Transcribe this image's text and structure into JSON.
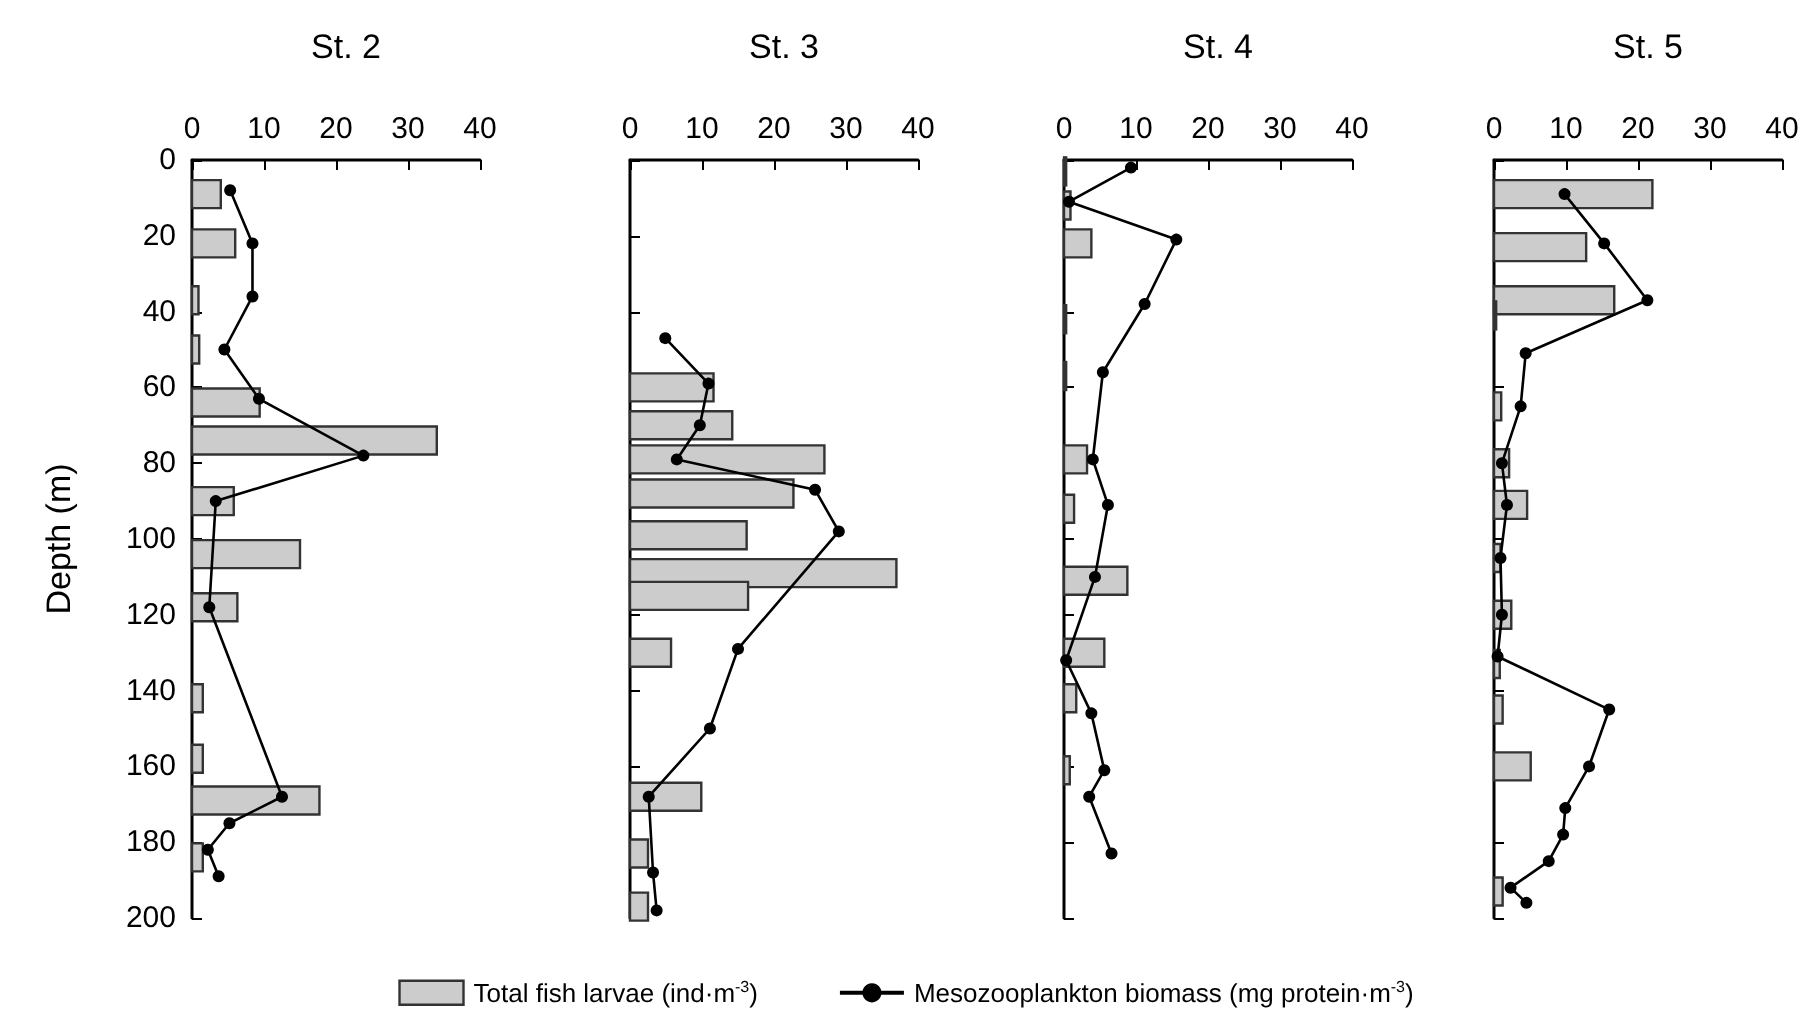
{
  "chart_data": [
    {
      "type": "bar",
      "orientation": "horizontal",
      "title": "St. 2",
      "ylabel": "Depth (m)",
      "xlim": [
        0,
        40
      ],
      "xticks": [
        0,
        10,
        20,
        30,
        40
      ],
      "ylim": [
        200,
        0
      ],
      "yticks": [
        0,
        20,
        40,
        60,
        80,
        100,
        120,
        140,
        160,
        180,
        200
      ],
      "marker": "circle",
      "legend": "bottom",
      "series": [
        {
          "name": "Total fish larvae (ind·m$^{-3}$)",
          "color": "#cccccc",
          "x": [
            9,
            22,
            37,
            50,
            64,
            74,
            90,
            104,
            118,
            142,
            158,
            169,
            184
          ],
          "values": [
            4,
            6,
            0.9,
            1,
            9.4,
            34,
            5.8,
            15,
            6.3,
            1.5,
            1.5,
            17.7,
            1.5
          ]
        },
        {
          "type": "line",
          "name": "Mesozooplankton biomass (mg protein·m$^{-3}$)",
          "color": "#000000",
          "x": [
            8,
            22,
            36,
            50,
            63,
            78,
            90,
            118,
            168,
            175,
            182,
            189
          ],
          "values": [
            5.3,
            8.4,
            8.4,
            4.5,
            9.3,
            23.8,
            3.3,
            2.4,
            12.5,
            5.2,
            2.2,
            3.7
          ]
        }
      ]
    },
    {
      "type": "bar",
      "orientation": "horizontal",
      "title": "St. 3",
      "xlim": [
        0,
        40
      ],
      "xticks": [
        0,
        10,
        20,
        30,
        40
      ],
      "ylim": [
        200,
        0
      ],
      "yticks": [
        0,
        20,
        40,
        60,
        80,
        100,
        120,
        140,
        160,
        180,
        200
      ],
      "marker": "circle",
      "tick_labels": "x",
      "series": [
        {
          "color": "#cccccc",
          "x": [
            60,
            70,
            79,
            88,
            99,
            109,
            115,
            130,
            168,
            183,
            197
          ],
          "values": [
            11.6,
            14.2,
            27,
            22.7,
            16.2,
            37,
            16.4,
            5.7,
            9.9,
            2.5,
            2.5
          ]
        },
        {
          "type": "line",
          "color": "#000000",
          "x": [
            47,
            59,
            70,
            79,
            87,
            98,
            129,
            150,
            168,
            188,
            198
          ],
          "values": [
            4.9,
            10.9,
            9.7,
            6.5,
            25.7,
            29,
            15,
            11.1,
            2.6,
            3.2,
            3.7
          ]
        }
      ]
    },
    {
      "type": "bar",
      "orientation": "horizontal",
      "title": "St. 4",
      "xlim": [
        0,
        40
      ],
      "xticks": [
        0,
        10,
        20,
        30,
        40
      ],
      "ylim": [
        200,
        0
      ],
      "yticks": [
        0,
        20,
        40,
        60,
        80,
        100,
        120,
        140,
        160,
        180,
        200
      ],
      "marker": "circle",
      "tick_labels": "x",
      "series": [
        {
          "color": "#cccccc",
          "x": [
            3,
            12,
            22,
            42,
            57,
            79,
            92,
            111,
            130,
            142,
            161
          ],
          "values": [
            0.3,
            0.9,
            3.8,
            0.3,
            0.3,
            3.2,
            1.4,
            8.8,
            5.6,
            1.7,
            0.8
          ]
        },
        {
          "type": "line",
          "color": "#000000",
          "x": [
            2,
            11,
            21,
            38,
            56,
            79,
            91,
            110,
            132,
            146,
            161,
            168,
            183
          ],
          "values": [
            9.3,
            0.7,
            15.6,
            11.2,
            5.4,
            4,
            6.1,
            4.3,
            0.3,
            3.8,
            5.6,
            3.5,
            6.6
          ]
        }
      ]
    },
    {
      "type": "bar",
      "orientation": "horizontal",
      "title": "St. 5",
      "xlim": [
        0,
        40
      ],
      "xticks": [
        0,
        10,
        20,
        30,
        40
      ],
      "ylim": [
        200,
        0
      ],
      "yticks": [
        0,
        20,
        40,
        60,
        80,
        100,
        120,
        140,
        160,
        180,
        200
      ],
      "marker": "circle",
      "tick_labels": "x",
      "series": [
        {
          "color": "#cccccc",
          "x": [
            9,
            23,
            37,
            41,
            65,
            80,
            91,
            105,
            120,
            133,
            145,
            160,
            193
          ],
          "values": [
            22,
            12.8,
            16.7,
            0.3,
            1,
            2.1,
            4.6,
            0.9,
            2.4,
            0.8,
            1.2,
            5.1,
            1.2
          ]
        },
        {
          "type": "line",
          "color": "#000000",
          "x": [
            9,
            22,
            37,
            51,
            65,
            80,
            91,
            105,
            120,
            131,
            145,
            160,
            171,
            178,
            185,
            192,
            196
          ],
          "values": [
            9.8,
            15.3,
            21.3,
            4.4,
            3.7,
            1.1,
            1.8,
            0.9,
            1.1,
            0.5,
            16,
            13.2,
            9.9,
            9.6,
            7.6,
            2.3,
            4.5
          ]
        }
      ]
    }
  ]
}
